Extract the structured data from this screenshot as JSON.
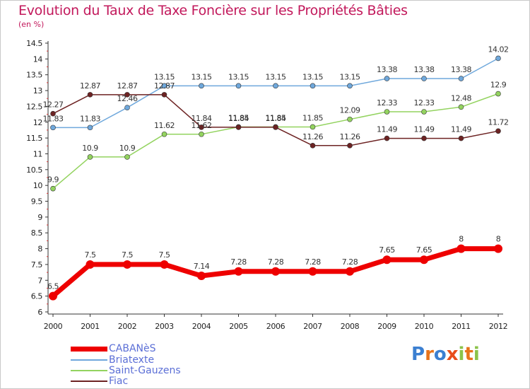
{
  "header": {
    "title": "Evolution du Taux de Taxe Foncière sur les Propriétés Bâties",
    "unit": "(en %)"
  },
  "logo": {
    "letters": [
      "P",
      "r",
      "o",
      "x",
      "i",
      "t",
      "i"
    ],
    "colors": [
      "#3b7fd1",
      "#e8731a",
      "#3b7fd1",
      "#e84d1a",
      "#8bc34a",
      "#e8731a",
      "#8bc34a"
    ]
  },
  "chart_data": {
    "type": "line",
    "x": [
      "2000",
      "2001",
      "2002",
      "2003",
      "2004",
      "2005",
      "2006",
      "2007",
      "2008",
      "2009",
      "2010",
      "2011",
      "2012"
    ],
    "ylim": [
      6,
      14.5
    ],
    "yticks": [
      "6",
      "6.5",
      "7",
      "7.5",
      "8",
      "8.5",
      "9",
      "9.5",
      "10",
      "10.5",
      "11",
      "11.5",
      "12",
      "12.5",
      "13",
      "13.5",
      "14",
      "14.5"
    ],
    "grid": false,
    "legend_position": "bottom-left",
    "series": [
      {
        "name": "CABANèS",
        "color": "#ee0000",
        "values": [
          6.5,
          7.5,
          7.5,
          7.5,
          7.14,
          7.28,
          7.28,
          7.28,
          7.28,
          7.65,
          7.65,
          8,
          8
        ],
        "labels": [
          "6.5",
          "7.5",
          "7.5",
          "7.5",
          "7.14",
          "7.28",
          "7.28",
          "7.28",
          "7.28",
          "7.65",
          "7.65",
          "8",
          "8"
        ]
      },
      {
        "name": "Briatexte",
        "color": "#6fa8dc",
        "values": [
          11.83,
          11.83,
          12.46,
          13.15,
          13.15,
          13.15,
          13.15,
          13.15,
          13.15,
          13.38,
          13.38,
          13.38,
          14.02
        ],
        "labels": [
          "11.83",
          "11.83",
          "12.46",
          "13.15",
          "13.15",
          "13.15",
          "13.15",
          "13.15",
          "13.15",
          "13.38",
          "13.38",
          "13.38",
          "14.02"
        ]
      },
      {
        "name": "Saint-Gauzens",
        "color": "#93d35f",
        "values": [
          9.9,
          10.9,
          10.9,
          11.62,
          11.62,
          11.85,
          11.85,
          11.85,
          12.09,
          12.33,
          12.33,
          12.48,
          12.9
        ],
        "labels": [
          "9.9",
          "10.9",
          "10.9",
          "11.62",
          "11.62",
          "11.85",
          "11.85",
          "11.85",
          "12.09",
          "12.33",
          "12.33",
          "12.48",
          "12.9"
        ]
      },
      {
        "name": "Fiac",
        "color": "#6d2323",
        "values": [
          12.27,
          12.87,
          12.87,
          12.87,
          11.84,
          11.84,
          11.84,
          11.26,
          11.26,
          11.49,
          11.49,
          11.49,
          11.72
        ],
        "labels": [
          "12.27",
          "12.87",
          "12.87",
          "12.87",
          "11.84",
          "11.84",
          "11.84",
          "11.26",
          "11.26",
          "11.49",
          "11.49",
          "11.49",
          "11.72"
        ]
      }
    ]
  }
}
